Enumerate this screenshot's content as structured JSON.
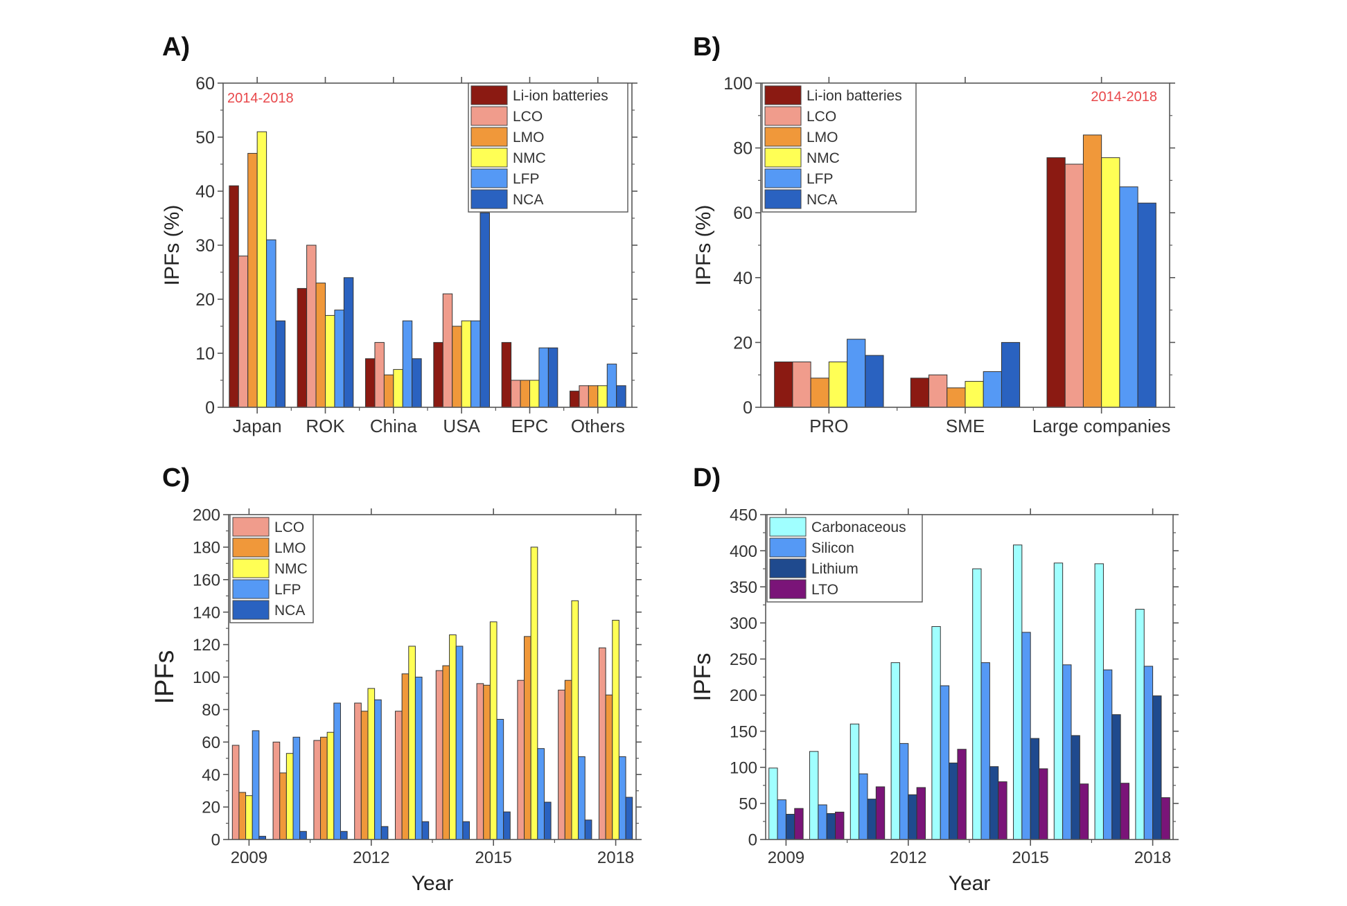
{
  "figure": {
    "panels": [
      "A)",
      "B)",
      "C)",
      "D)"
    ]
  },
  "chart_data": [
    {
      "id": "A",
      "panel_label": "A)",
      "type": "bar",
      "title": "",
      "annotation": "2014-2018",
      "xlabel": "",
      "ylabel": "IPFs (%)",
      "ylim": [
        0,
        60
      ],
      "yticks": [
        0,
        10,
        20,
        30,
        40,
        50,
        60
      ],
      "legend_position": "top-right",
      "categories": [
        "Japan",
        "ROK",
        "China",
        "USA",
        "EPC",
        "Others"
      ],
      "series": [
        {
          "name": "Li-ion batteries",
          "color": "#8B1A12",
          "values": [
            41,
            22,
            9,
            12,
            12,
            3
          ]
        },
        {
          "name": "LCO",
          "color": "#F09C8C",
          "values": [
            28,
            30,
            12,
            21,
            5,
            4
          ]
        },
        {
          "name": "LMO",
          "color": "#F0983A",
          "values": [
            47,
            23,
            6,
            15,
            5,
            4
          ]
        },
        {
          "name": "NMC",
          "color": "#FFFF55",
          "values": [
            51,
            17,
            7,
            16,
            5,
            4
          ]
        },
        {
          "name": "LFP",
          "color": "#5599F5",
          "values": [
            31,
            18,
            16,
            16,
            11,
            8
          ]
        },
        {
          "name": "NCA",
          "color": "#2A62C0",
          "values": [
            16,
            24,
            9,
            36,
            11,
            4
          ]
        }
      ]
    },
    {
      "id": "B",
      "panel_label": "B)",
      "type": "bar",
      "title": "",
      "annotation": "2014-2018",
      "xlabel": "",
      "ylabel": "IPFs (%)",
      "ylim": [
        0,
        100
      ],
      "yticks": [
        0,
        20,
        40,
        60,
        80,
        100
      ],
      "legend_position": "top-left",
      "categories": [
        "PRO",
        "SME",
        "Large companies"
      ],
      "series": [
        {
          "name": "Li-ion batteries",
          "color": "#8B1A12",
          "values": [
            14,
            9,
            77
          ]
        },
        {
          "name": "LCO",
          "color": "#F09C8C",
          "values": [
            14,
            10,
            75
          ]
        },
        {
          "name": "LMO",
          "color": "#F0983A",
          "values": [
            9,
            6,
            84
          ]
        },
        {
          "name": "NMC",
          "color": "#FFFF55",
          "values": [
            14,
            8,
            77
          ]
        },
        {
          "name": "LFP",
          "color": "#5599F5",
          "values": [
            21,
            11,
            68
          ]
        },
        {
          "name": "NCA",
          "color": "#2A62C0",
          "values": [
            16,
            20,
            63
          ]
        }
      ]
    },
    {
      "id": "C",
      "panel_label": "C)",
      "type": "bar",
      "title": "",
      "annotation": "",
      "xlabel": "Year",
      "ylabel": "IPFs",
      "ylim": [
        0,
        200
      ],
      "yticks": [
        0,
        20,
        40,
        60,
        80,
        100,
        120,
        140,
        160,
        180,
        200
      ],
      "legend_position": "top-left",
      "categories": [
        "2009",
        "2010",
        "2011",
        "2012",
        "2013",
        "2014",
        "2015",
        "2016",
        "2017",
        "2018"
      ],
      "xtick_labels": [
        "2009",
        "2012",
        "2015",
        "2018"
      ],
      "series": [
        {
          "name": "LCO",
          "color": "#F09C8C",
          "values": [
            58,
            60,
            61,
            84,
            79,
            104,
            96,
            98,
            92,
            118
          ]
        },
        {
          "name": "LMO",
          "color": "#F0983A",
          "values": [
            29,
            41,
            63,
            79,
            102,
            107,
            95,
            125,
            98,
            89
          ]
        },
        {
          "name": "NMC",
          "color": "#FFFF55",
          "values": [
            27,
            53,
            66,
            93,
            119,
            126,
            134,
            180,
            147,
            135
          ]
        },
        {
          "name": "LFP",
          "color": "#5599F5",
          "values": [
            67,
            63,
            84,
            86,
            100,
            119,
            74,
            56,
            51,
            51
          ]
        },
        {
          "name": "NCA",
          "color": "#2A62C0",
          "values": [
            2,
            5,
            5,
            8,
            11,
            11,
            17,
            23,
            12,
            26
          ]
        }
      ]
    },
    {
      "id": "D",
      "panel_label": "D)",
      "type": "bar",
      "title": "",
      "annotation": "",
      "xlabel": "Year",
      "ylabel": "IPFs",
      "ylim": [
        0,
        450
      ],
      "yticks": [
        0,
        50,
        100,
        150,
        200,
        250,
        300,
        350,
        400,
        450
      ],
      "legend_position": "top-left",
      "categories": [
        "2009",
        "2010",
        "2011",
        "2012",
        "2013",
        "2014",
        "2015",
        "2016",
        "2017",
        "2018"
      ],
      "xtick_labels": [
        "2009",
        "2012",
        "2015",
        "2018"
      ],
      "series": [
        {
          "name": "Carbonaceous",
          "color": "#A0FFFF",
          "values": [
            99,
            122,
            160,
            245,
            295,
            375,
            408,
            383,
            382,
            319
          ]
        },
        {
          "name": "Silicon",
          "color": "#5599F5",
          "values": [
            55,
            48,
            91,
            133,
            213,
            245,
            287,
            242,
            235,
            240
          ]
        },
        {
          "name": "Lithium",
          "color": "#1F4A8E",
          "values": [
            35,
            36,
            56,
            62,
            106,
            101,
            140,
            144,
            173,
            199
          ]
        },
        {
          "name": "LTO",
          "color": "#7A1478",
          "values": [
            43,
            38,
            73,
            72,
            125,
            80,
            98,
            77,
            78,
            58
          ]
        }
      ]
    }
  ]
}
